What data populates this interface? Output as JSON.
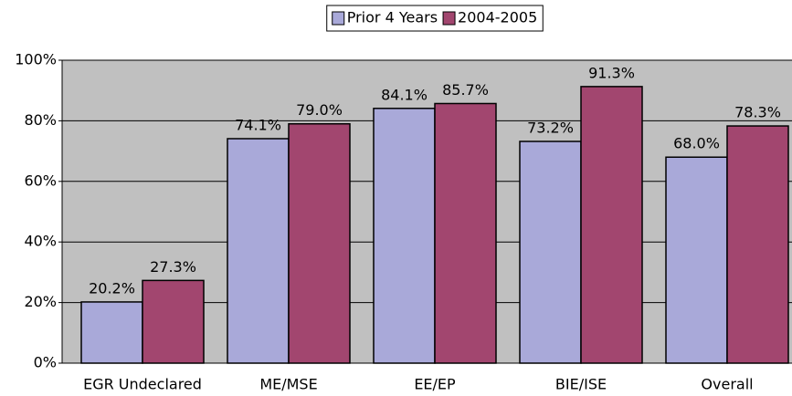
{
  "chart_data": {
    "type": "bar",
    "categories": [
      "EGR Undeclared",
      "ME/MSE",
      "EE/EP",
      "BIE/ISE",
      "Overall"
    ],
    "series": [
      {
        "name": "Prior 4 Years",
        "color": "#a9a9d9",
        "values": [
          20.2,
          74.1,
          84.1,
          73.2,
          68.0
        ],
        "value_labels": [
          "20.2%",
          "74.1%",
          "84.1%",
          "73.2%",
          "68.0%"
        ]
      },
      {
        "name": "2004-2005",
        "color": "#a2466f",
        "values": [
          27.3,
          79.0,
          85.7,
          91.3,
          78.3
        ],
        "value_labels": [
          "27.3%",
          "79.0%",
          "85.7%",
          "91.3%",
          "78.3%"
        ]
      }
    ],
    "ylim": [
      0,
      100
    ],
    "yticks": [
      {
        "value": 0,
        "label": "0%"
      },
      {
        "value": 20,
        "label": "20%"
      },
      {
        "value": 40,
        "label": "40%"
      },
      {
        "value": 60,
        "label": "60%"
      },
      {
        "value": 80,
        "label": "80%"
      },
      {
        "value": 100,
        "label": "100%"
      }
    ],
    "grid": true,
    "legend": "top",
    "background": "#c0c0c0"
  }
}
